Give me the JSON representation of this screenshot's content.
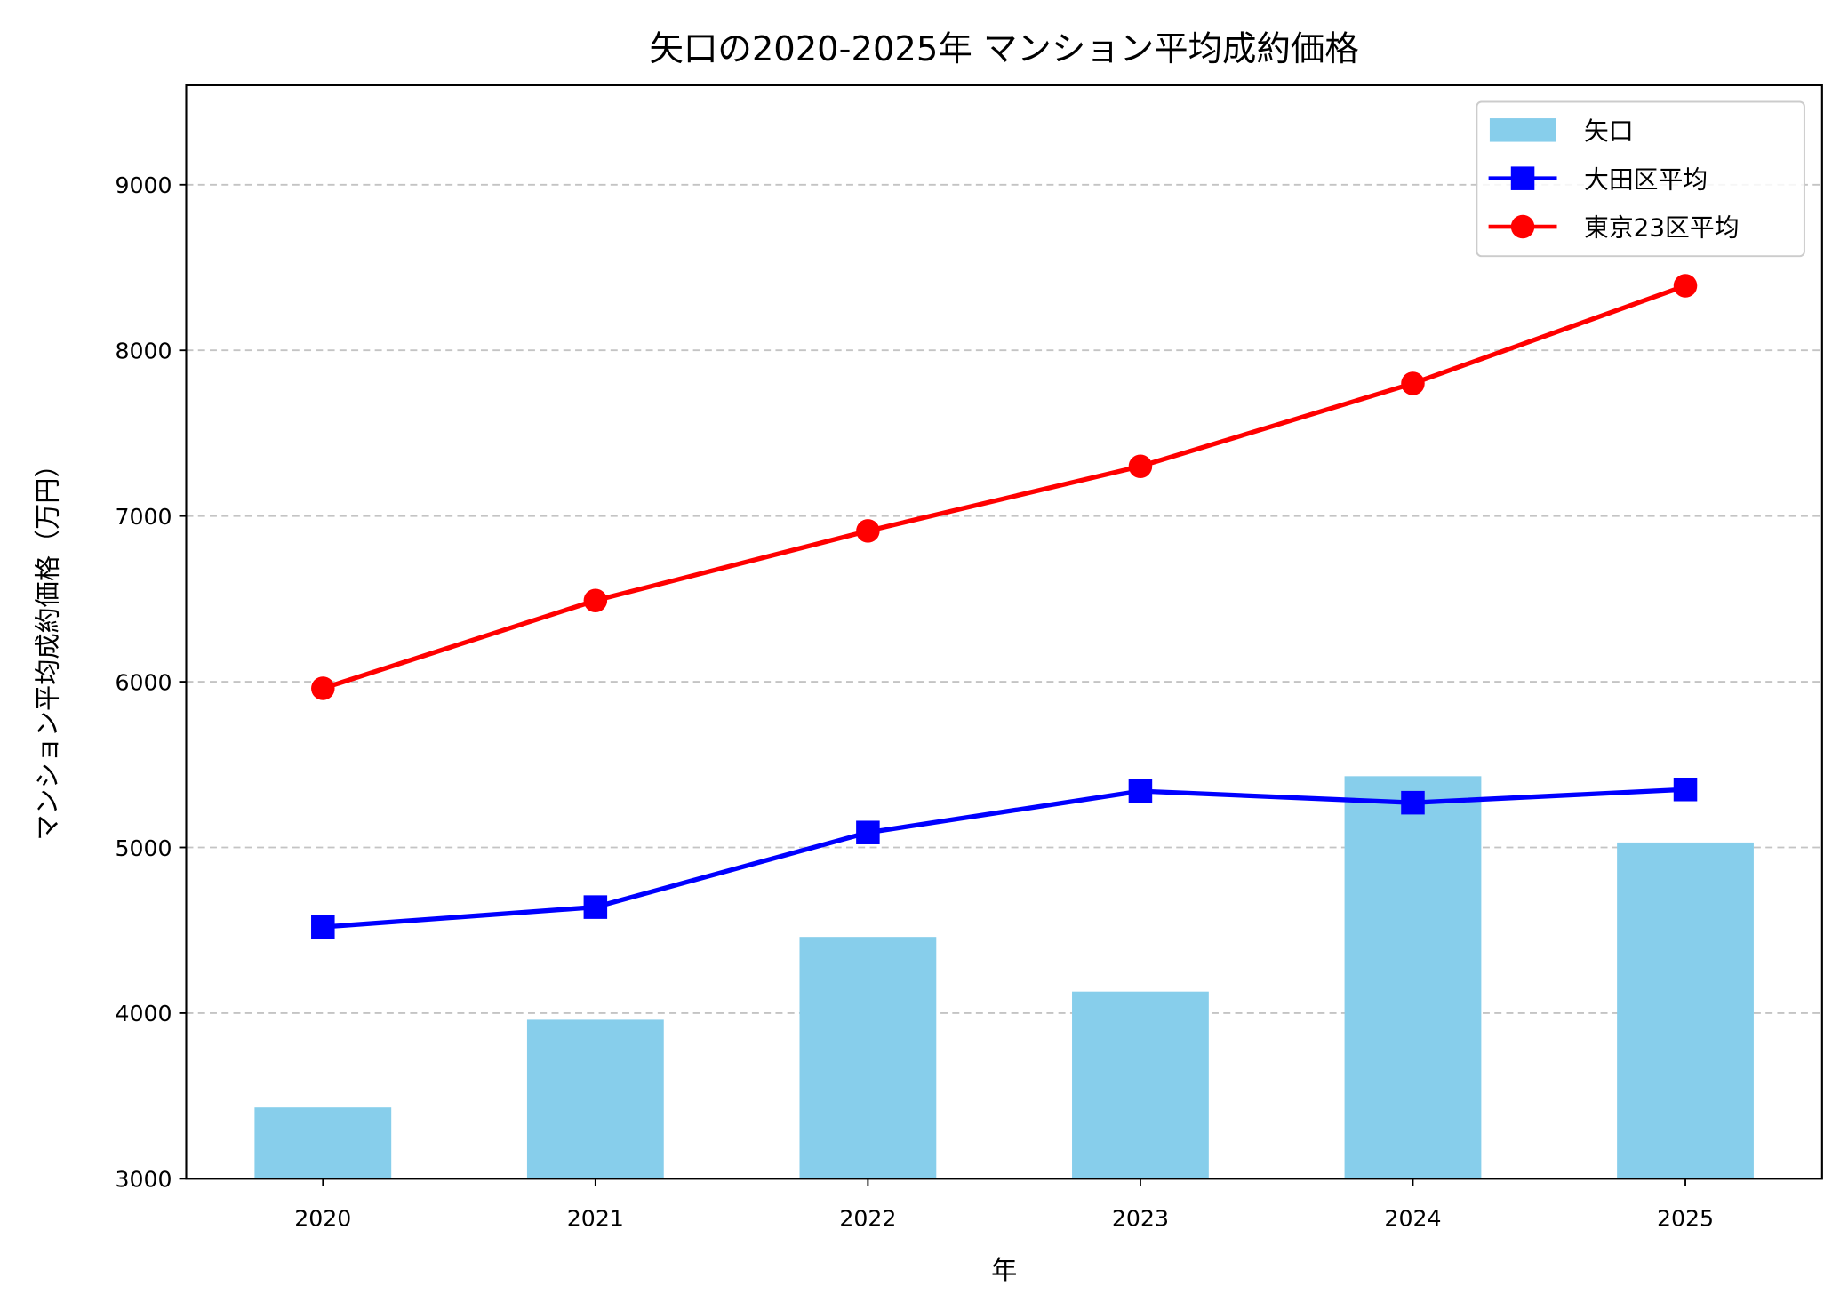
{
  "chart_data": {
    "type": "bar+line",
    "title": "矢口の2020-2025年 マンション平均成約価格",
    "xlabel": "年",
    "ylabel": "マンション平均成約価格（万円）",
    "categories": [
      "2020",
      "2021",
      "2022",
      "2023",
      "2024",
      "2025"
    ],
    "ylim": [
      3000,
      9600
    ],
    "yticks": [
      3000,
      4000,
      5000,
      6000,
      7000,
      8000,
      9000
    ],
    "grid": "y-dashed",
    "legend_position": "top-right",
    "series": [
      {
        "name": "矢口",
        "kind": "bar",
        "color": "#87ceeb",
        "values": [
          3430,
          3960,
          4460,
          4130,
          5430,
          5030
        ]
      },
      {
        "name": "大田区平均",
        "kind": "line",
        "marker": "square",
        "color": "#0000ff",
        "values": [
          4520,
          4640,
          5090,
          5340,
          5270,
          5350
        ]
      },
      {
        "name": "東京23区平均",
        "kind": "line",
        "marker": "circle",
        "color": "#ff0000",
        "values": [
          5960,
          6490,
          6910,
          7300,
          7800,
          8390
        ]
      }
    ]
  }
}
